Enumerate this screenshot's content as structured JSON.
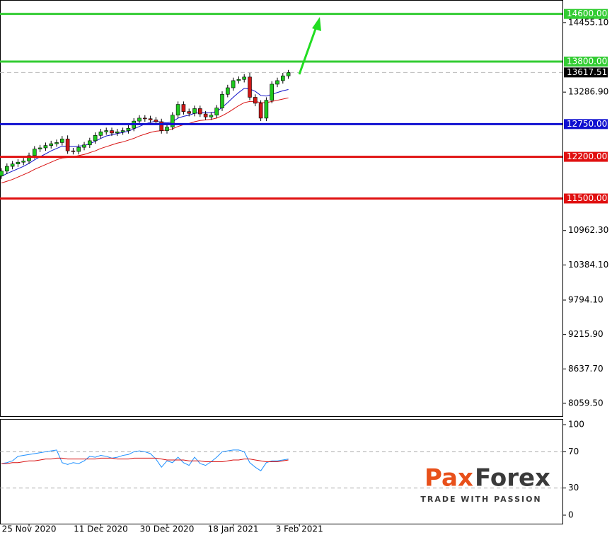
{
  "chart_data": [
    {
      "type": "candlestick",
      "xlim": [
        -0.26,
        101.67
      ],
      "xticks": [
        {
          "value": 5,
          "label": "25 Nov 2020"
        },
        {
          "value": 18,
          "label": "11 Dec 2020"
        },
        {
          "value": 30,
          "label": "30 Dec 2020"
        },
        {
          "value": 42,
          "label": "18 Jan 2021"
        },
        {
          "value": 54,
          "label": "3 Feb 2021"
        }
      ],
      "ylim": [
        7845,
        14834
      ],
      "yticks": [
        {
          "value": 14455.1,
          "label": "14455.10"
        },
        {
          "value": 13286.9,
          "label": "13286.90"
        },
        {
          "value": 10962.3,
          "label": "10962.30"
        },
        {
          "value": 10384.1,
          "label": "10384.10"
        },
        {
          "value": 9794.1,
          "label": "9794.10"
        },
        {
          "value": 9215.9,
          "label": "9215.90"
        },
        {
          "value": 8637.7,
          "label": "8637.70"
        },
        {
          "value": 8059.5,
          "label": "8059.50"
        }
      ],
      "up_color": "#1ec81e",
      "down_color": "#d01818",
      "open": [
        11880,
        11960,
        12040,
        12080,
        12110,
        12130,
        12220,
        12330,
        12350,
        12390,
        12420,
        12440,
        12500,
        12300,
        12290,
        12360,
        12400,
        12470,
        12560,
        12620,
        12640,
        12600,
        12620,
        12640,
        12680,
        12800,
        12850,
        12840,
        12820,
        12790,
        12640,
        12700,
        12900,
        13080,
        12960,
        12930,
        13010,
        12920,
        12870,
        12900,
        13020,
        13250,
        13360,
        13480,
        13500,
        13540,
        13200,
        13100,
        12850,
        13150,
        13420,
        13480,
        13560
      ],
      "high": [
        12010,
        12090,
        12130,
        12160,
        12180,
        12270,
        12380,
        12400,
        12440,
        12470,
        12490,
        12550,
        12560,
        12350,
        12410,
        12450,
        12520,
        12610,
        12670,
        12690,
        12690,
        12670,
        12690,
        12730,
        12850,
        12900,
        12900,
        12890,
        12870,
        12840,
        12750,
        12950,
        13130,
        13130,
        13010,
        13060,
        13060,
        12970,
        12950,
        13070,
        13300,
        13410,
        13530,
        13550,
        13590,
        13620,
        13250,
        13150,
        13200,
        13470,
        13530,
        13610,
        13660
      ],
      "low": [
        11830,
        11910,
        11990,
        12030,
        12060,
        12080,
        12170,
        12280,
        12300,
        12340,
        12370,
        12390,
        12250,
        12240,
        12240,
        12310,
        12350,
        12420,
        12510,
        12570,
        12550,
        12550,
        12570,
        12590,
        12630,
        12750,
        12790,
        12770,
        12740,
        12590,
        12590,
        12650,
        12850,
        12910,
        12880,
        12880,
        12870,
        12820,
        12820,
        12850,
        12970,
        13200,
        13310,
        13430,
        13450,
        13150,
        13050,
        12800,
        12800,
        13100,
        13370,
        13430,
        13510
      ],
      "close": [
        11960,
        12040,
        12080,
        12110,
        12130,
        12220,
        12330,
        12350,
        12390,
        12420,
        12440,
        12500,
        12300,
        12290,
        12360,
        12400,
        12470,
        12560,
        12620,
        12640,
        12600,
        12620,
        12640,
        12680,
        12800,
        12850,
        12840,
        12820,
        12790,
        12640,
        12700,
        12900,
        13080,
        12960,
        12930,
        13010,
        12920,
        12870,
        12900,
        13020,
        13250,
        13360,
        13480,
        13500,
        13540,
        13200,
        13100,
        12850,
        13150,
        13420,
        13480,
        13560,
        13617.51
      ],
      "series": [
        {
          "color": "#1010c8",
          "values": [
            11870,
            11920,
            11960,
            12000,
            12040,
            12090,
            12150,
            12200,
            12250,
            12300,
            12340,
            12380,
            12380,
            12370,
            12380,
            12390,
            12420,
            12460,
            12510,
            12550,
            12570,
            12590,
            12610,
            12630,
            12670,
            12710,
            12750,
            12780,
            12800,
            12780,
            12770,
            12790,
            12850,
            12880,
            12900,
            12930,
            12940,
            12940,
            12940,
            12960,
            13030,
            13110,
            13200,
            13280,
            13350,
            13340,
            13300,
            13230,
            13220,
            13250,
            13280,
            13310,
            13330
          ]
        },
        {
          "color": "#d81010",
          "values": [
            11760,
            11790,
            11820,
            11860,
            11900,
            11940,
            11990,
            12030,
            12070,
            12110,
            12150,
            12180,
            12190,
            12200,
            12220,
            12240,
            12270,
            12300,
            12340,
            12370,
            12400,
            12430,
            12450,
            12480,
            12510,
            12550,
            12580,
            12610,
            12630,
            12640,
            12650,
            12670,
            12710,
            12740,
            12760,
            12790,
            12810,
            12820,
            12830,
            12850,
            12890,
            12940,
            13000,
            13060,
            13110,
            13130,
            13130,
            13110,
            13110,
            13130,
            13150,
            13170,
            13190
          ]
        }
      ],
      "levels": [
        {
          "value": 14600,
          "label": "14600.00",
          "color": "#33cc33"
        },
        {
          "value": 13800,
          "label": "13800.00",
          "color": "#33cc33"
        },
        {
          "value": 12750,
          "label": "12750.00",
          "color": "#1010d0"
        },
        {
          "value": 12200,
          "label": "12200.00",
          "color": "#e01010"
        },
        {
          "value": 11500,
          "label": "11500.00",
          "color": "#e01010"
        }
      ],
      "last_price": 13617.51
    },
    {
      "type": "line",
      "ylim": [
        -9.4,
        106.3
      ],
      "yticks": [
        100,
        70,
        30,
        0
      ],
      "levels": [
        70,
        30
      ],
      "series": [
        {
          "color": "#1e90ff",
          "values": [
            57,
            58,
            60,
            65,
            66,
            67,
            68,
            69,
            70,
            71,
            72,
            58,
            56,
            58,
            57,
            60,
            65,
            64,
            66,
            65,
            63,
            64,
            66,
            67,
            70,
            71,
            70,
            68,
            62,
            53,
            60,
            58,
            64,
            58,
            55,
            64,
            57,
            55,
            59,
            64,
            70,
            71,
            72,
            72,
            70,
            58,
            53,
            49,
            58,
            60,
            60,
            61,
            62
          ]
        },
        {
          "color": "#d81010",
          "values": [
            57,
            57,
            58,
            58,
            59,
            60,
            60,
            61,
            62,
            62,
            63,
            63,
            62,
            62,
            62,
            62,
            62,
            62,
            63,
            63,
            63,
            62,
            62,
            62,
            63,
            63,
            63,
            63,
            63,
            62,
            61,
            61,
            61,
            61,
            60,
            60,
            60,
            59,
            59,
            59,
            59,
            60,
            61,
            61,
            62,
            62,
            61,
            60,
            59,
            59,
            59,
            60,
            61
          ]
        }
      ]
    }
  ],
  "watermark": {
    "brand_left": "Pax",
    "brand_right": "Forex",
    "tagline": "TRADE WITH PASSION"
  }
}
